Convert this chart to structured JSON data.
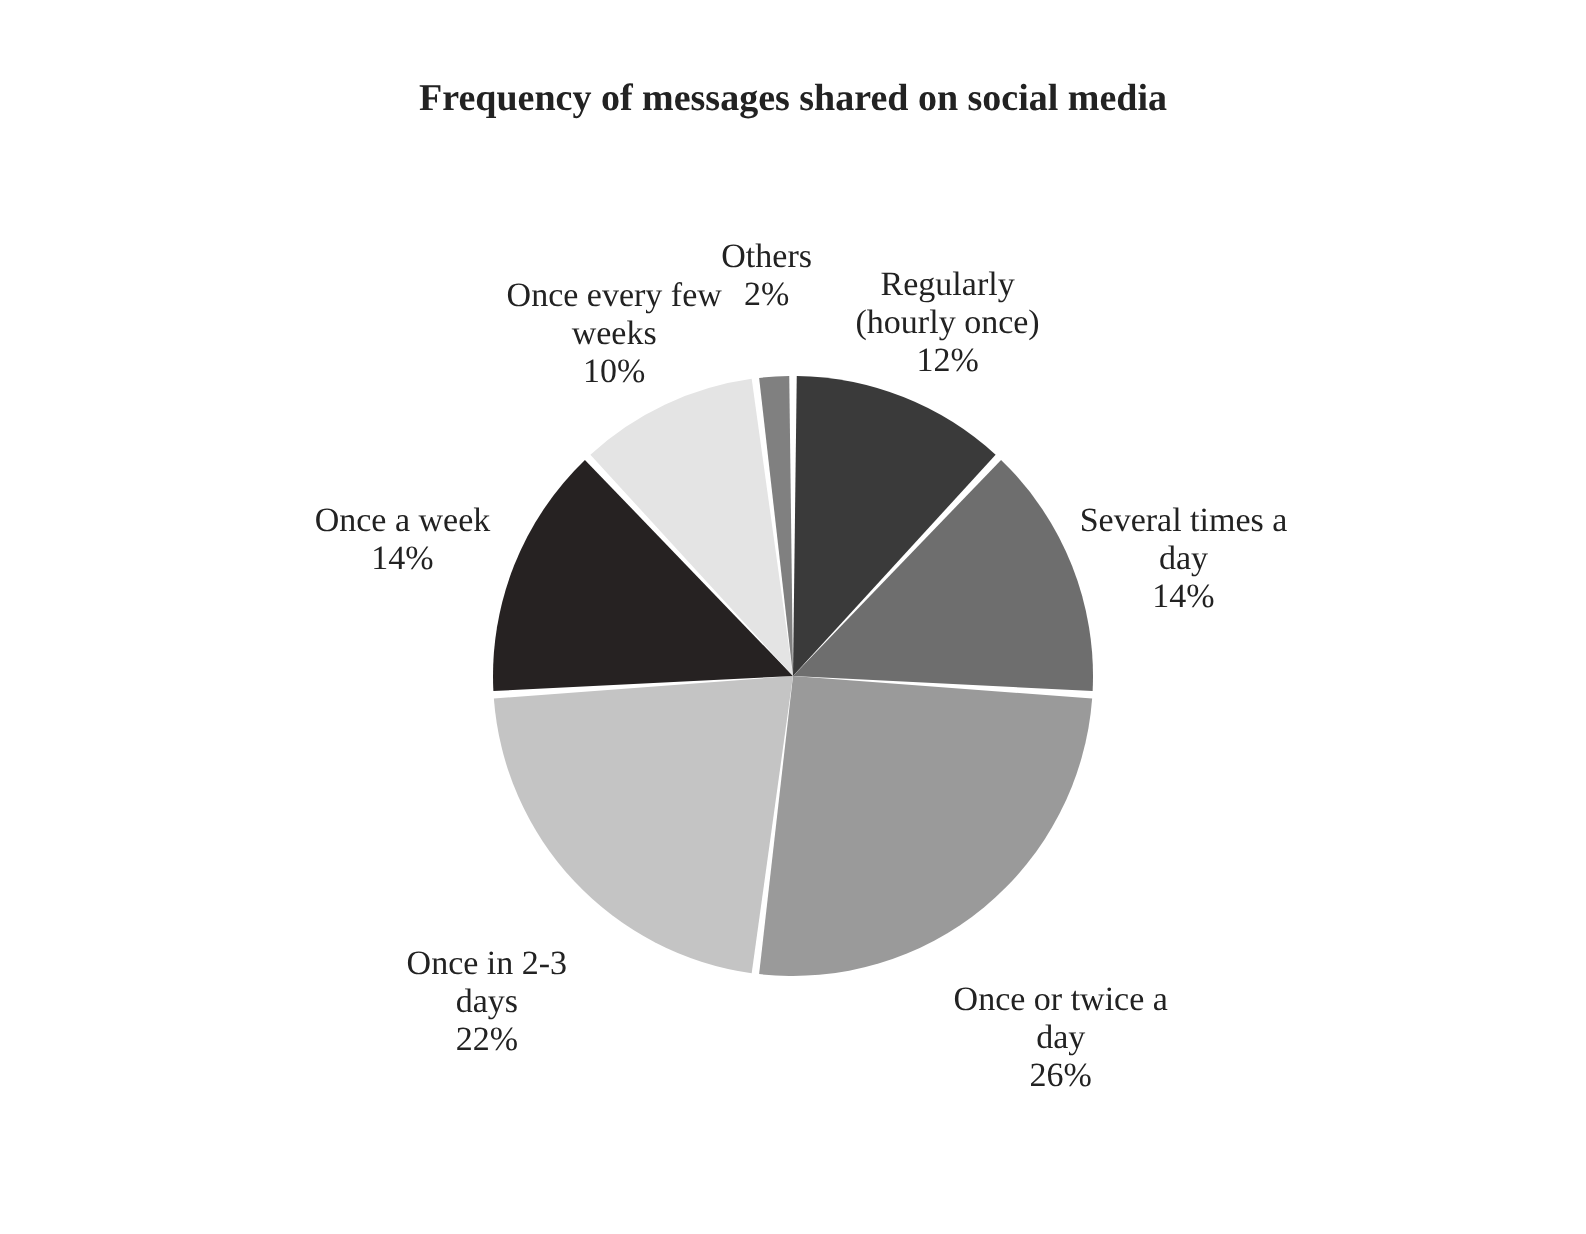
{
  "chart_data": {
    "type": "pie",
    "title": "Frequency of messages shared on social media",
    "categories": [
      "Regularly (hourly once)",
      "Several times a day",
      "Once or twice a day",
      "Once in 2-3 days",
      "Once a week",
      "Once every few weeks",
      "Others"
    ],
    "values": [
      12,
      14,
      26,
      22,
      14,
      10,
      2
    ],
    "value_labels": [
      "12%",
      "14%",
      "26%",
      "22%",
      "14%",
      "10%",
      "2%"
    ],
    "colors": [
      "#3a3a3a",
      "#6e6e6e",
      "#9a9a9a",
      "#c4c4c4",
      "#262222",
      "#e4e4e4",
      "#808080"
    ],
    "legend": false
  }
}
